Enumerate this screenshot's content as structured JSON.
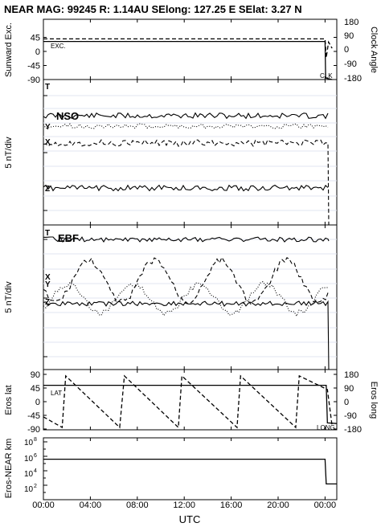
{
  "header": {
    "title": "NEAR MAG: 99245  R: 1.14AU  SElong:  127.25 E  SElat:   3.27 N"
  },
  "chart_data": {
    "type": "line",
    "x_label": "UTC",
    "x_ticks": [
      "00:00",
      "04:00",
      "08:00",
      "12:00",
      "16:00",
      "20:00",
      "00:00"
    ],
    "x_range_hours": [
      0,
      25
    ],
    "panels": [
      {
        "id": "p1",
        "ylabel_left": "Sunward Exc.",
        "ylabel_right": "Clock Angle",
        "left_ticks": [
          "45",
          "0",
          "-45",
          "-90"
        ],
        "right_ticks": [
          "180",
          "90",
          "0",
          "-90",
          "-180"
        ],
        "y_range_left": [
          -90,
          90
        ],
        "series": [
          {
            "name": "EXC.",
            "style": "solid",
            "x": [
              0,
              24.0,
              24.05,
              24.6
            ],
            "y": [
              32,
              32,
              -85,
              -90
            ]
          },
          {
            "name": "CLK",
            "style": "dashed",
            "x": [
              0,
              24.0,
              24.1,
              24.3,
              24.6
            ],
            "y": [
              40,
              40,
              -20,
              30,
              10
            ]
          }
        ]
      },
      {
        "id": "p2",
        "ylabel_left": "5 nT/div",
        "ylabel_right": "",
        "box_label": "NSO",
        "series_labels": [
          "T",
          "Y",
          "X",
          "Z"
        ]
      },
      {
        "id": "p3",
        "ylabel_left": "5 nT/div",
        "ylabel_right": "",
        "box_label": "EBF",
        "series_labels": [
          "T",
          "X",
          "Y",
          "Z"
        ]
      },
      {
        "id": "p4",
        "ylabel_left": "Eros lat",
        "ylabel_right": "Eros long",
        "left_ticks": [
          "90",
          "45",
          "0",
          "-45",
          "-90"
        ],
        "right_ticks": [
          "180",
          "90",
          "0",
          "-90",
          "-180"
        ],
        "y_range_left": [
          -90,
          90
        ],
        "series": [
          {
            "name": "LAT",
            "style": "solid",
            "x": [
              0,
              24.1,
              24.2,
              25
            ],
            "y": [
              54,
              54,
              -70,
              -72
            ]
          },
          {
            "name": "LONG",
            "style": "dashed",
            "x": [
              0,
              1.6,
              1.9,
              6.5,
              6.9,
              11.5,
              11.8,
              16.5,
              16.8,
              21.5,
              21.8,
              24.2,
              24.6
            ],
            "y": [
              -50,
              -85,
              85,
              -85,
              85,
              -85,
              85,
              -85,
              85,
              -85,
              85,
              40,
              -80
            ]
          }
        ]
      },
      {
        "id": "p5",
        "ylabel_left": "Eros-NEAR km",
        "ylabel_right": "",
        "left_ticks": [
          "10^6",
          "10^4",
          "10^2"
        ],
        "y_log_range": [
          0,
          8
        ],
        "series": [
          {
            "name": "distance",
            "style": "solid",
            "x": [
              0,
              24.0,
              24.1,
              25
            ],
            "y": [
              400000,
              400000,
              150,
              150
            ]
          }
        ]
      }
    ]
  },
  "labels": {
    "exc": "EXC.",
    "clk": "CLK",
    "lat": "LAT",
    "long": "LONG",
    "nso": "NSO",
    "ebf": "EBF",
    "T": "T",
    "X": "X",
    "Y": "Y",
    "Z": "Z",
    "t10": "10",
    "e8": "8",
    "e6": "6",
    "e4": "4",
    "e2": "2"
  }
}
